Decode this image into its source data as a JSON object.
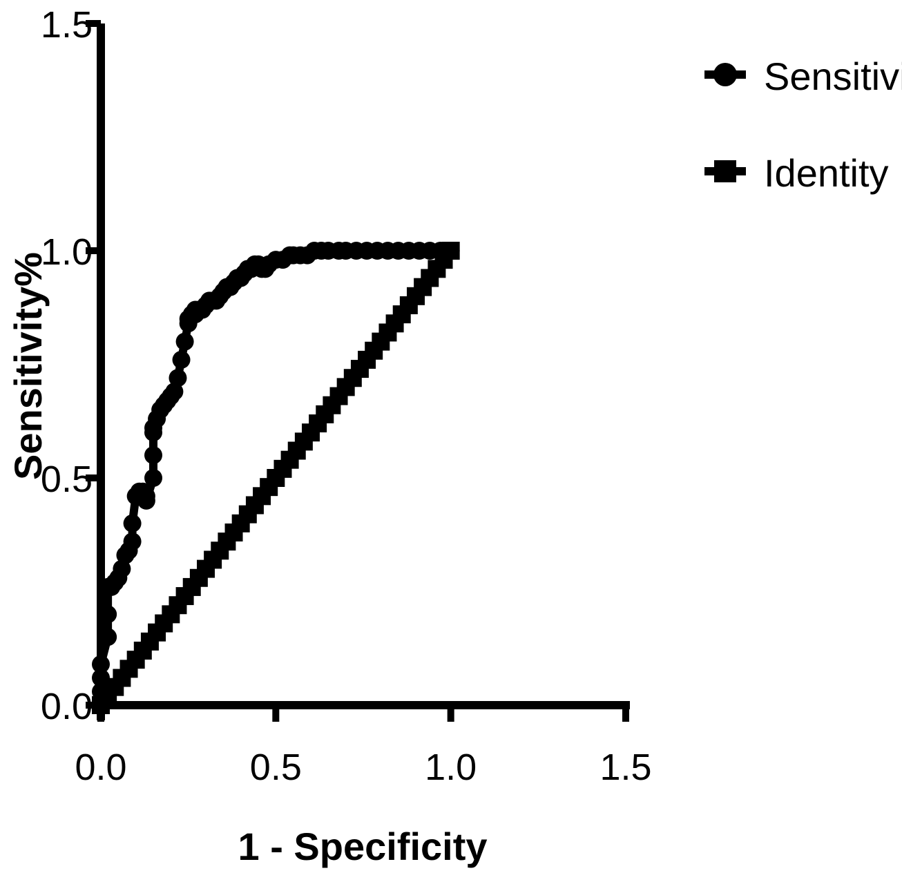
{
  "chart_data": {
    "type": "line",
    "title": "",
    "xlabel": "1 - Specificity",
    "ylabel": "Sensitivity%",
    "xlim": [
      0,
      1.5
    ],
    "ylim": [
      0,
      1.5
    ],
    "xticks": [
      "0.0",
      "0.5",
      "1.0",
      "1.5"
    ],
    "yticks": [
      "0.0",
      "0.5",
      "1.0",
      "1.5"
    ],
    "grid": false,
    "legend_position": "top-right",
    "series": [
      {
        "name": "Sensitivity",
        "marker": "circle",
        "color": "#000000",
        "x": [
          0.0,
          0.0,
          0.0,
          0.0,
          0.02,
          0.02,
          0.02,
          0.03,
          0.04,
          0.05,
          0.06,
          0.07,
          0.08,
          0.09,
          0.09,
          0.1,
          0.11,
          0.12,
          0.13,
          0.13,
          0.15,
          0.15,
          0.15,
          0.15,
          0.16,
          0.17,
          0.18,
          0.19,
          0.2,
          0.21,
          0.22,
          0.23,
          0.24,
          0.25,
          0.25,
          0.26,
          0.27,
          0.27,
          0.28,
          0.29,
          0.3,
          0.31,
          0.32,
          0.33,
          0.34,
          0.35,
          0.36,
          0.37,
          0.38,
          0.39,
          0.4,
          0.41,
          0.42,
          0.43,
          0.44,
          0.45,
          0.46,
          0.47,
          0.48,
          0.5,
          0.52,
          0.54,
          0.55,
          0.57,
          0.59,
          0.61,
          0.63,
          0.65,
          0.68,
          0.7,
          0.73,
          0.76,
          0.79,
          0.82,
          0.85,
          0.88,
          0.91,
          0.94,
          0.97,
          1.0
        ],
        "y": [
          0.0,
          0.03,
          0.06,
          0.09,
          0.15,
          0.2,
          0.26,
          0.26,
          0.27,
          0.28,
          0.3,
          0.33,
          0.34,
          0.36,
          0.4,
          0.46,
          0.47,
          0.47,
          0.46,
          0.45,
          0.5,
          0.55,
          0.6,
          0.61,
          0.63,
          0.65,
          0.66,
          0.67,
          0.68,
          0.69,
          0.72,
          0.76,
          0.8,
          0.84,
          0.85,
          0.86,
          0.86,
          0.87,
          0.87,
          0.87,
          0.88,
          0.89,
          0.89,
          0.89,
          0.9,
          0.91,
          0.92,
          0.92,
          0.93,
          0.94,
          0.94,
          0.95,
          0.96,
          0.96,
          0.97,
          0.97,
          0.96,
          0.96,
          0.97,
          0.98,
          0.98,
          0.99,
          0.99,
          0.99,
          0.99,
          1.0,
          1.0,
          1.0,
          1.0,
          1.0,
          1.0,
          1.0,
          1.0,
          1.0,
          1.0,
          1.0,
          1.0,
          1.0,
          1.0,
          1.0
        ]
      },
      {
        "name": "Identity",
        "marker": "square",
        "color": "#000000",
        "x": [
          0.0,
          0.02,
          0.04,
          0.06,
          0.08,
          0.1,
          0.12,
          0.14,
          0.16,
          0.18,
          0.2,
          0.22,
          0.24,
          0.26,
          0.28,
          0.3,
          0.32,
          0.34,
          0.36,
          0.38,
          0.4,
          0.42,
          0.44,
          0.46,
          0.48,
          0.5,
          0.52,
          0.54,
          0.56,
          0.58,
          0.6,
          0.62,
          0.64,
          0.66,
          0.68,
          0.7,
          0.72,
          0.74,
          0.76,
          0.78,
          0.8,
          0.82,
          0.84,
          0.86,
          0.88,
          0.9,
          0.92,
          0.94,
          0.96,
          0.98,
          1.0
        ],
        "y": [
          0.0,
          0.02,
          0.04,
          0.06,
          0.08,
          0.1,
          0.12,
          0.14,
          0.16,
          0.18,
          0.2,
          0.22,
          0.24,
          0.26,
          0.28,
          0.3,
          0.32,
          0.34,
          0.36,
          0.38,
          0.4,
          0.42,
          0.44,
          0.46,
          0.48,
          0.5,
          0.52,
          0.54,
          0.56,
          0.58,
          0.6,
          0.62,
          0.64,
          0.66,
          0.68,
          0.7,
          0.72,
          0.74,
          0.76,
          0.78,
          0.8,
          0.82,
          0.84,
          0.86,
          0.88,
          0.9,
          0.92,
          0.94,
          0.96,
          0.98,
          1.0
        ]
      }
    ]
  }
}
